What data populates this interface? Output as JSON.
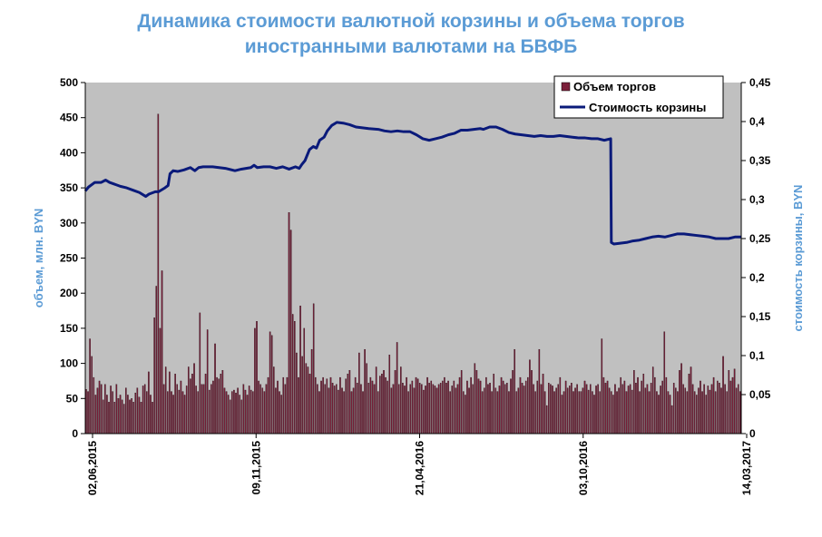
{
  "chart_data": {
    "type": "bar+line",
    "title_line1": "Динамика стоимости валютной корзины и объема торгов",
    "title_line2": "иностранными валютами на БВФБ",
    "ylabel_left": "объем, млн. BYN",
    "ylabel_right": "стоимость корзины, BYN",
    "ylim_left": [
      0,
      500
    ],
    "ylim_right": [
      0,
      0.45
    ],
    "yticks_left": [
      "0",
      "50",
      "100",
      "150",
      "200",
      "250",
      "300",
      "350",
      "400",
      "450",
      "500"
    ],
    "yticks_right": [
      "0",
      "0,05",
      "0,1",
      "0,15",
      "0,2",
      "0,25",
      "0,3",
      "0,35",
      "0,4",
      "0,45"
    ],
    "xticks": [
      "02,06,2015",
      "09,11,2015",
      "21,04,2016",
      "03,10,2016",
      "14,03,2017"
    ],
    "legend_position": "top-right",
    "grid": false,
    "colors": {
      "bars": "#7b1f3a",
      "line": "#0a1a7a",
      "plot_bg": "#c0c0c0",
      "title": "#5b9bd5"
    },
    "series": [
      {
        "name": "Объем торгов",
        "axis": "left",
        "kind": "bar",
        "values": [
          63,
          60,
          135,
          110,
          80,
          55,
          65,
          75,
          70,
          48,
          70,
          55,
          45,
          68,
          60,
          45,
          70,
          50,
          55,
          48,
          42,
          65,
          55,
          48,
          50,
          45,
          58,
          65,
          52,
          45,
          68,
          70,
          60,
          88,
          55,
          45,
          165,
          210,
          455,
          150,
          232,
          70,
          95,
          60,
          88,
          60,
          55,
          85,
          70,
          62,
          75,
          60,
          55,
          68,
          95,
          78,
          85,
          100,
          68,
          60,
          172,
          70,
          70,
          85,
          148,
          62,
          70,
          75,
          128,
          80,
          78,
          85,
          90,
          65,
          60,
          55,
          48,
          60,
          62,
          58,
          65,
          55,
          48,
          70,
          62,
          55,
          68,
          62,
          60,
          150,
          160,
          75,
          70,
          65,
          60,
          70,
          80,
          145,
          140,
          95,
          65,
          75,
          60,
          55,
          80,
          70,
          80,
          315,
          290,
          170,
          160,
          115,
          80,
          182,
          110,
          150,
          100,
          95,
          85,
          120,
          185,
          80,
          70,
          60,
          75,
          80,
          70,
          78,
          65,
          80,
          72,
          68,
          70,
          62,
          80,
          65,
          60,
          78,
          85,
          90,
          60,
          65,
          80,
          72,
          115,
          70,
          60,
          120,
          100,
          72,
          80,
          75,
          70,
          95,
          60,
          82,
          85,
          90,
          80,
          75,
          112,
          65,
          70,
          90,
          130,
          70,
          95,
          72,
          68,
          80,
          60,
          70,
          75,
          65,
          80,
          78,
          72,
          70,
          62,
          68,
          80,
          72,
          75,
          70,
          68,
          65,
          70,
          72,
          75,
          80,
          72,
          75,
          60,
          68,
          75,
          65,
          70,
          80,
          90,
          60,
          55,
          75,
          65,
          80,
          70,
          100,
          90,
          78,
          75,
          60,
          65,
          80,
          70,
          72,
          60,
          85,
          65,
          60,
          68,
          80,
          75,
          70,
          72,
          60,
          78,
          90,
          120,
          60,
          65,
          80,
          72,
          68,
          75,
          80,
          105,
          90,
          70,
          60,
          75,
          120,
          70,
          85,
          60,
          40,
          72,
          70,
          68,
          60,
          65,
          70,
          80,
          55,
          60,
          75,
          65,
          68,
          72,
          60,
          65,
          70,
          60,
          60,
          65,
          75,
          70,
          62,
          70,
          60,
          55,
          68,
          70,
          60,
          135,
          80,
          72,
          75,
          65,
          60,
          55,
          70,
          60,
          65,
          80,
          70,
          75,
          60,
          68,
          70,
          62,
          90,
          72,
          80,
          60,
          75,
          85,
          65,
          70,
          60,
          72,
          95,
          80,
          60,
          55,
          68,
          75,
          145,
          80,
          60,
          55,
          40,
          72,
          65,
          60,
          90,
          100,
          70,
          65,
          60,
          85,
          95,
          70,
          60,
          55,
          65,
          75,
          60,
          70,
          55,
          68,
          62,
          70,
          80,
          60,
          75,
          72,
          65,
          110,
          70,
          60,
          90,
          75,
          80,
          92,
          65,
          70,
          60
        ]
      },
      {
        "name": "Стоимость корзины",
        "axis": "right",
        "kind": "line",
        "points": [
          [
            0,
            0.311
          ],
          [
            0.5,
            0.316
          ],
          [
            1.5,
            0.322
          ],
          [
            2.5,
            0.322
          ],
          [
            3.2,
            0.325
          ],
          [
            3.8,
            0.322
          ],
          [
            4.5,
            0.32
          ],
          [
            5.5,
            0.317
          ],
          [
            6.5,
            0.315
          ],
          [
            7.5,
            0.312
          ],
          [
            8.5,
            0.309
          ],
          [
            9.5,
            0.304
          ],
          [
            10,
            0.307
          ],
          [
            11,
            0.31
          ],
          [
            11.5,
            0.31
          ],
          [
            12.5,
            0.315
          ],
          [
            13,
            0.318
          ],
          [
            13.3,
            0.333
          ],
          [
            13.8,
            0.337
          ],
          [
            14.5,
            0.336
          ],
          [
            15.5,
            0.338
          ],
          [
            16.5,
            0.341
          ],
          [
            17.2,
            0.337
          ],
          [
            17.8,
            0.341
          ],
          [
            18.5,
            0.342
          ],
          [
            20,
            0.342
          ],
          [
            21,
            0.341
          ],
          [
            22,
            0.34
          ],
          [
            23.5,
            0.337
          ],
          [
            24.5,
            0.339
          ],
          [
            26,
            0.341
          ],
          [
            26.5,
            0.344
          ],
          [
            27,
            0.341
          ],
          [
            28,
            0.342
          ],
          [
            29,
            0.342
          ],
          [
            30,
            0.34
          ],
          [
            31,
            0.342
          ],
          [
            32,
            0.339
          ],
          [
            33,
            0.342
          ],
          [
            33.6,
            0.34
          ],
          [
            34,
            0.345
          ],
          [
            34.5,
            0.35
          ],
          [
            35.2,
            0.364
          ],
          [
            35.8,
            0.368
          ],
          [
            36.3,
            0.366
          ],
          [
            36.8,
            0.376
          ],
          [
            37.5,
            0.38
          ],
          [
            38,
            0.388
          ],
          [
            38.7,
            0.395
          ],
          [
            39.5,
            0.399
          ],
          [
            40.5,
            0.398
          ],
          [
            41.5,
            0.396
          ],
          [
            42.5,
            0.393
          ],
          [
            43.5,
            0.392
          ],
          [
            44.5,
            0.391
          ],
          [
            46,
            0.39
          ],
          [
            47,
            0.388
          ],
          [
            48,
            0.387
          ],
          [
            49,
            0.388
          ],
          [
            50,
            0.387
          ],
          [
            51,
            0.387
          ],
          [
            52,
            0.383
          ],
          [
            53,
            0.378
          ],
          [
            54,
            0.376
          ],
          [
            55,
            0.378
          ],
          [
            56,
            0.38
          ],
          [
            57,
            0.383
          ],
          [
            58,
            0.385
          ],
          [
            59,
            0.389
          ],
          [
            60,
            0.389
          ],
          [
            61,
            0.39
          ],
          [
            62,
            0.391
          ],
          [
            62.5,
            0.39
          ],
          [
            63.5,
            0.393
          ],
          [
            64.5,
            0.393
          ],
          [
            65.5,
            0.39
          ],
          [
            66.5,
            0.386
          ],
          [
            67.5,
            0.384
          ],
          [
            68.5,
            0.383
          ],
          [
            69.5,
            0.382
          ],
          [
            70.5,
            0.381
          ],
          [
            71.5,
            0.382
          ],
          [
            72.5,
            0.381
          ],
          [
            73.5,
            0.381
          ],
          [
            74.5,
            0.382
          ],
          [
            75.5,
            0.381
          ],
          [
            76.5,
            0.38
          ],
          [
            77.5,
            0.379
          ],
          [
            78.5,
            0.379
          ],
          [
            79.5,
            0.378
          ],
          [
            80.5,
            0.378
          ],
          [
            81.5,
            0.376
          ],
          [
            82.5,
            0.378
          ],
          [
            82.6,
            0.245
          ],
          [
            83,
            0.243
          ],
          [
            84,
            0.244
          ],
          [
            85,
            0.245
          ],
          [
            86,
            0.247
          ],
          [
            87,
            0.248
          ],
          [
            88,
            0.25
          ],
          [
            89,
            0.252
          ],
          [
            90,
            0.253
          ],
          [
            91,
            0.252
          ],
          [
            92,
            0.254
          ],
          [
            93,
            0.256
          ],
          [
            94,
            0.256
          ],
          [
            95,
            0.255
          ],
          [
            96,
            0.254
          ],
          [
            97,
            0.253
          ],
          [
            98,
            0.252
          ],
          [
            99,
            0.25
          ],
          [
            100,
            0.25
          ],
          [
            101,
            0.25
          ],
          [
            102,
            0.252
          ],
          [
            103,
            0.252
          ]
        ]
      }
    ]
  }
}
